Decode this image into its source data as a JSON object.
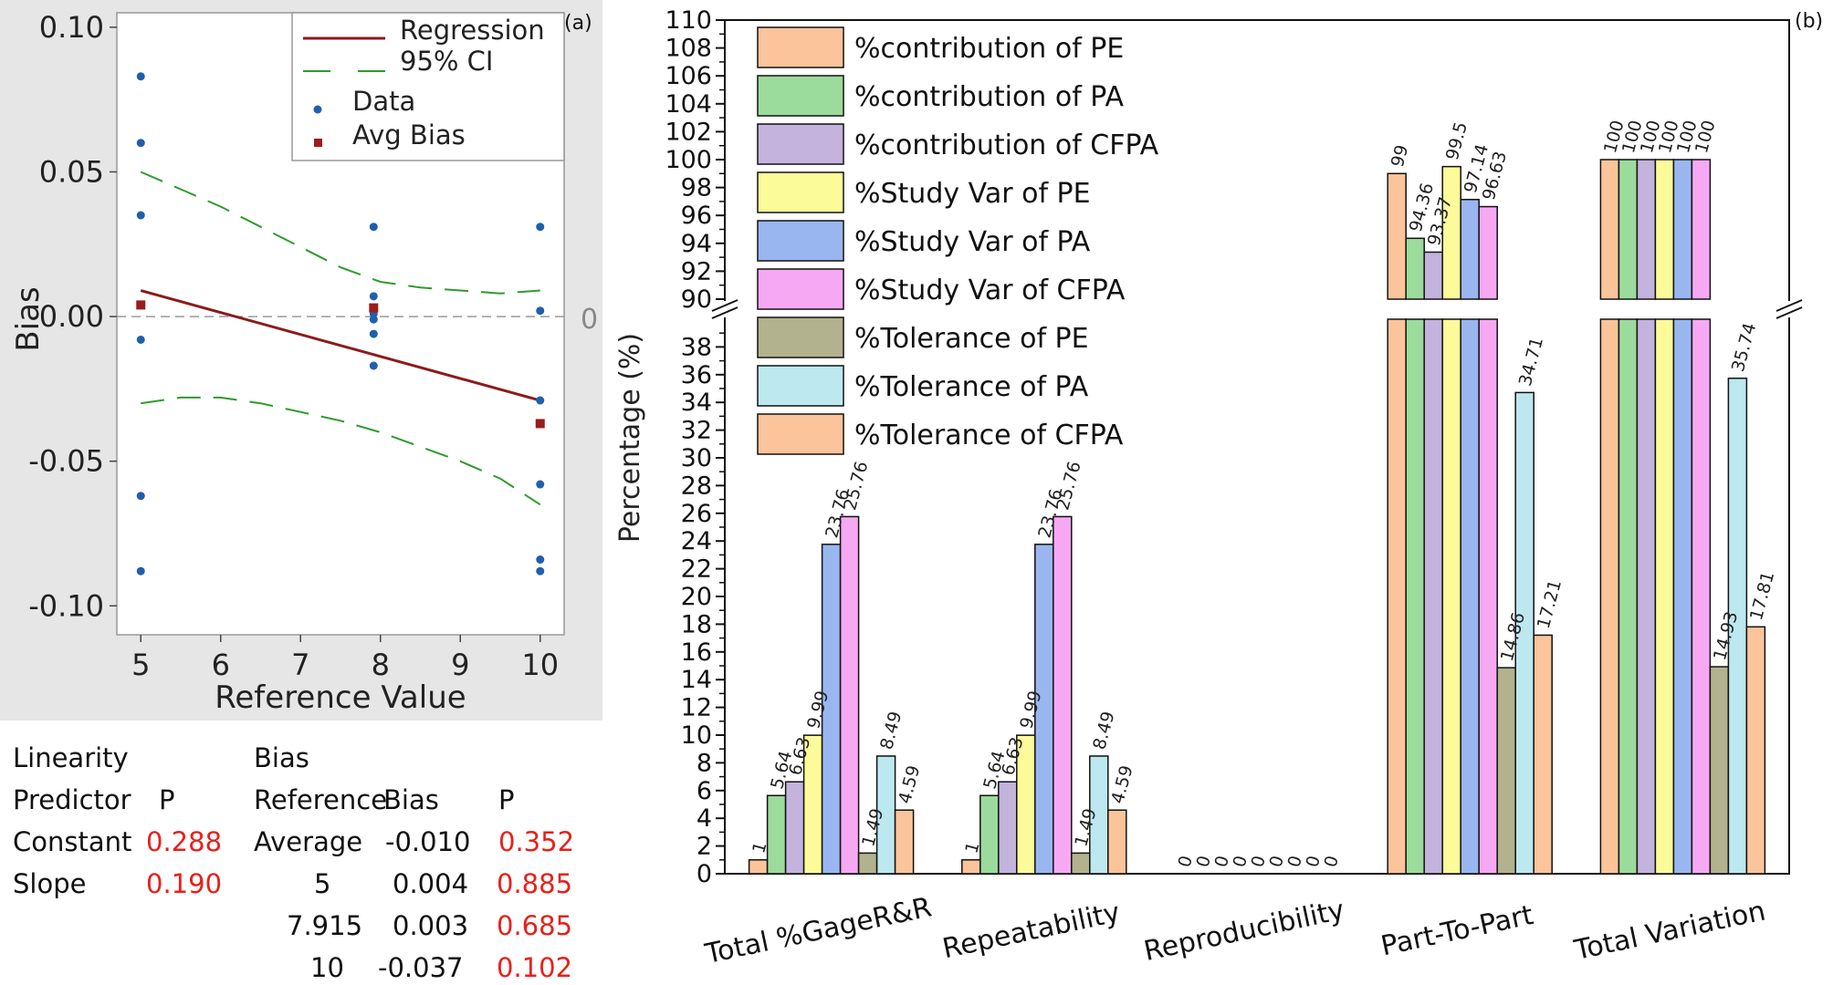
{
  "chart_data": [
    {
      "type": "scatter",
      "panel_label": "(a)",
      "xlabel": "Reference Value",
      "ylabel": "Bias",
      "xlim": [
        4.7,
        10.3
      ],
      "ylim": [
        -0.11,
        0.105
      ],
      "x_ticks": [
        "5",
        "6",
        "7",
        "8",
        "9",
        "10"
      ],
      "y_ticks": [
        "0.10",
        "0.05",
        "0.00",
        "-0.05",
        "-0.10"
      ],
      "zero_label": "0",
      "legend": [
        "Regression",
        "95% CI",
        "Data",
        "Avg Bias"
      ],
      "data_points": {
        "x": [
          5,
          5,
          5,
          5,
          5,
          5,
          7.915,
          7.915,
          7.915,
          7.915,
          7.915,
          7.915,
          10,
          10,
          10,
          10,
          10,
          10
        ],
        "y": [
          0.083,
          0.06,
          0.035,
          -0.008,
          -0.062,
          -0.088,
          0.031,
          0.007,
          0.001,
          -0.001,
          -0.006,
          -0.017,
          0.031,
          0.002,
          -0.029,
          -0.058,
          -0.084,
          -0.088
        ]
      },
      "avg_bias": {
        "x": [
          5,
          7.915,
          10
        ],
        "y": [
          0.004,
          0.003,
          -0.037
        ]
      },
      "regression": {
        "x": [
          5,
          10
        ],
        "y": [
          0.009,
          -0.029
        ]
      },
      "ci_upper": {
        "x": [
          5,
          5.5,
          6,
          6.5,
          7,
          7.5,
          8,
          8.5,
          9,
          9.5,
          10
        ],
        "y": [
          0.05,
          0.044,
          0.038,
          0.031,
          0.024,
          0.017,
          0.012,
          0.01,
          0.009,
          0.008,
          0.009
        ]
      },
      "ci_lower": {
        "x": [
          5,
          5.5,
          6,
          6.5,
          7,
          7.5,
          8,
          8.5,
          9,
          9.5,
          10
        ],
        "y": [
          -0.03,
          -0.028,
          -0.028,
          -0.03,
          -0.033,
          -0.036,
          -0.04,
          -0.045,
          -0.05,
          -0.056,
          -0.065
        ]
      }
    },
    {
      "type": "bar",
      "panel_label": "(b)",
      "ylabel": "Percentage (%)",
      "broken_axis": {
        "lower": [
          0,
          40
        ],
        "upper": [
          90,
          110
        ]
      },
      "y_ticks_lower": [
        "0",
        "2",
        "4",
        "6",
        "8",
        "10",
        "12",
        "14",
        "16",
        "18",
        "20",
        "22",
        "24",
        "26",
        "28",
        "30",
        "32",
        "34",
        "36",
        "38"
      ],
      "y_ticks_upper": [
        "90",
        "92",
        "94",
        "96",
        "98",
        "100",
        "102",
        "104",
        "106",
        "108",
        "110"
      ],
      "categories": [
        "Total %GageR&R",
        "Repeatability",
        "Reproducibility",
        "Part-To-Part",
        "Total Variation"
      ],
      "series": [
        {
          "name": "%contribution of PE",
          "color": "#fbc49a",
          "values": [
            1,
            1,
            0,
            99,
            100
          ],
          "labels": [
            "1",
            "1",
            "0",
            "99",
            "100"
          ]
        },
        {
          "name": "%contribution of PA",
          "color": "#9bdb9b",
          "values": [
            5.64,
            5.64,
            0,
            94.36,
            100
          ],
          "labels": [
            "5.64",
            "5.64",
            "0",
            "94.36",
            "100"
          ]
        },
        {
          "name": "%contribution of CFPA",
          "color": "#c3b3dd",
          "values": [
            6.63,
            6.63,
            0,
            93.37,
            100
          ],
          "labels": [
            "6.63",
            "6.63",
            "0",
            "93.37",
            "100"
          ]
        },
        {
          "name": "%Study Var of PE",
          "color": "#fbfb99",
          "values": [
            9.99,
            9.99,
            0,
            99.5,
            100
          ],
          "labels": [
            "9.99",
            "9.99",
            "0",
            "99.5",
            "100"
          ]
        },
        {
          "name": "%Study Var of PA",
          "color": "#9ab6f0",
          "values": [
            23.76,
            23.76,
            0,
            97.14,
            100
          ],
          "labels": [
            "23.76",
            "23.76",
            "0",
            "97.14",
            "100"
          ]
        },
        {
          "name": "%Study Var of CFPA",
          "color": "#f7a8f3",
          "values": [
            25.76,
            25.76,
            0,
            96.63,
            100
          ],
          "labels": [
            "25.76",
            "25.76",
            "0",
            "96.63",
            "100"
          ]
        },
        {
          "name": "%Tolerance of PE",
          "color": "#b2b28e",
          "values": [
            1.49,
            1.49,
            0,
            14.86,
            14.93
          ],
          "labels": [
            "1.49",
            "1.49",
            "0",
            "14.86",
            "14.93"
          ]
        },
        {
          "name": "%Tolerance of PA",
          "color": "#bde8ef",
          "values": [
            8.49,
            8.49,
            0,
            34.71,
            35.74
          ],
          "labels": [
            "8.49",
            "8.49",
            "0",
            "34.71",
            "35.74"
          ]
        },
        {
          "name": "%Tolerance of CFPA",
          "color": "#fbc49a",
          "values": [
            4.59,
            4.59,
            0,
            17.21,
            17.81
          ],
          "labels": [
            "4.59",
            "4.59",
            "0",
            "17.21",
            "17.81"
          ]
        }
      ]
    }
  ],
  "stats_table": {
    "linearity_title": "Linearity",
    "predictor_header": "Predictor",
    "p_header": "P",
    "rows": [
      {
        "name": "Constant",
        "p": "0.288"
      },
      {
        "name": "Slope",
        "p": "0.190"
      }
    ],
    "bias_title": "Bias",
    "reference_header": "Reference",
    "bias_header": "Bias",
    "bias_p_header": "P",
    "bias_rows": [
      {
        "ref": "Average",
        "bias": "-0.010",
        "p": "0.352"
      },
      {
        "ref": "5",
        "bias": "0.004",
        "p": "0.885"
      },
      {
        "ref": "7.915",
        "bias": "0.003",
        "p": "0.685"
      },
      {
        "ref": "10",
        "bias": "-0.037",
        "p": "0.102"
      }
    ]
  }
}
